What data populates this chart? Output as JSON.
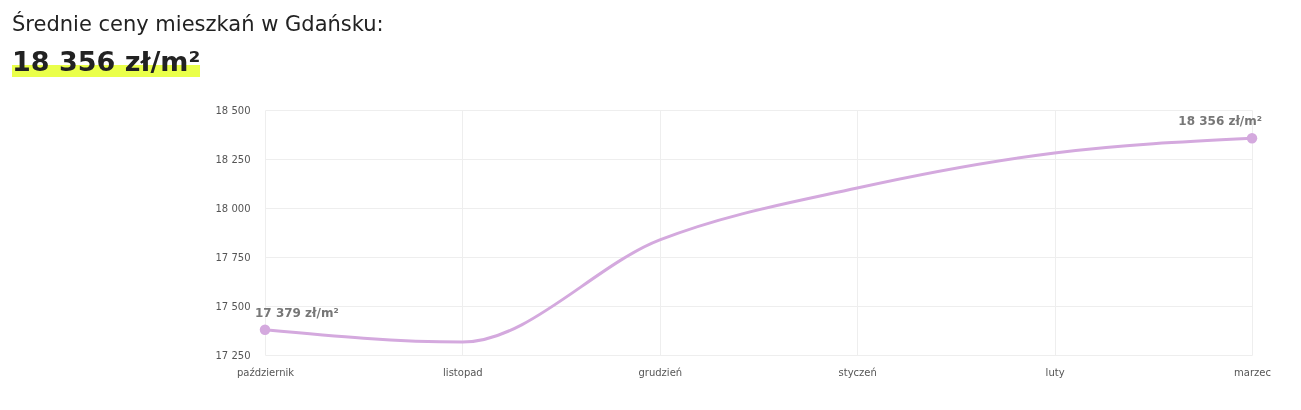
{
  "chart_data": {
    "type": "line",
    "title": "Średnie ceny mieszkań w Gdańsku:",
    "subtitle": "18 356 zł/m²",
    "categories": [
      "październik",
      "listopad",
      "grudzień",
      "styczeń",
      "luty",
      "marzec"
    ],
    "series": [
      {
        "color": "#d4a9de",
        "values": [
          17379,
          17316,
          17837,
          18102,
          18281,
          18356
        ],
        "value_labels": [
          "17 379 zł/m²",
          null,
          null,
          null,
          null,
          "18 356 zł/m²"
        ]
      }
    ],
    "ylim": [
      17250,
      18500
    ],
    "yticks": [
      {
        "value": 17250,
        "label": "17 250"
      },
      {
        "value": 17500,
        "label": "17 500"
      },
      {
        "value": 17750,
        "label": "17 750"
      },
      {
        "value": 18000,
        "label": "18 000"
      },
      {
        "value": 18250,
        "label": "18 250"
      },
      {
        "value": 18500,
        "label": "18 500"
      }
    ],
    "grid": true
  }
}
